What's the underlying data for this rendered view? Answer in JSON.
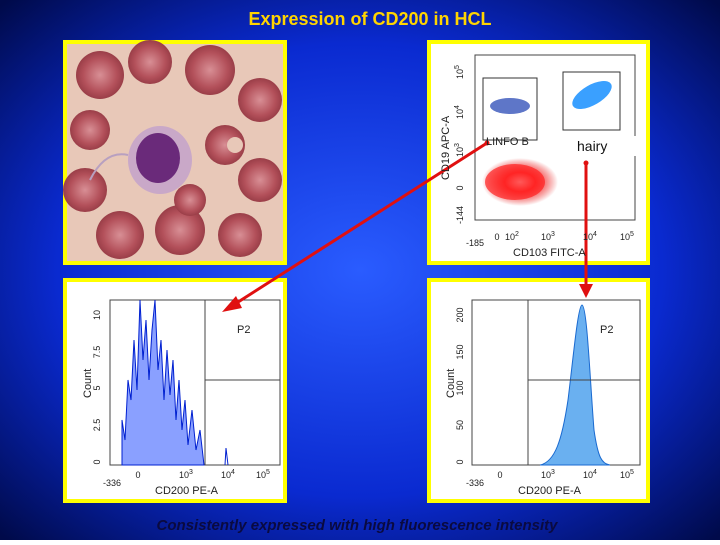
{
  "title": "Expression of CD200 in HCL",
  "caption": "Consistently expressed with high fluorescence intensity",
  "dot_plot": {
    "y_label": "CD19 APC-A",
    "x_label": "CD103 FITC-A",
    "gates": [
      "LINFO B",
      "hairy"
    ],
    "yticks": [
      {
        "base": "-144"
      },
      {
        "base": "0"
      },
      {
        "base": "10",
        "exp": "3"
      },
      {
        "base": "10",
        "exp": "4"
      },
      {
        "base": "10",
        "exp": "5"
      }
    ],
    "xticks": [
      {
        "base": "-185"
      },
      {
        "base": "0"
      },
      {
        "base": "10",
        "exp": "2"
      },
      {
        "base": "10",
        "exp": "3"
      },
      {
        "base": "10",
        "exp": "4"
      },
      {
        "base": "10",
        "exp": "5"
      }
    ]
  },
  "histograms": [
    {
      "gate": "P2",
      "y_label": "Count",
      "x_label": "CD200 PE-A",
      "yticks": [
        {
          "base": "0"
        },
        {
          "base": "2.5"
        },
        {
          "base": "5"
        },
        {
          "base": "7.5"
        },
        {
          "base": "10"
        }
      ],
      "xticks": [
        {
          "base": "-336"
        },
        {
          "base": "0"
        },
        {
          "base": "10",
          "exp": "3"
        },
        {
          "base": "10",
          "exp": "4"
        },
        {
          "base": "10",
          "exp": "5"
        }
      ]
    },
    {
      "gate": "P2",
      "y_label": "Count",
      "x_label": "CD200 PE-A",
      "yticks": [
        {
          "base": "0"
        },
        {
          "base": "50"
        },
        {
          "base": "100"
        },
        {
          "base": "150"
        },
        {
          "base": "200"
        }
      ],
      "xticks": [
        {
          "base": "-336"
        },
        {
          "base": "0"
        },
        {
          "base": "10",
          "exp": "3"
        },
        {
          "base": "10",
          "exp": "4"
        },
        {
          "base": "10",
          "exp": "5"
        }
      ]
    }
  ]
}
